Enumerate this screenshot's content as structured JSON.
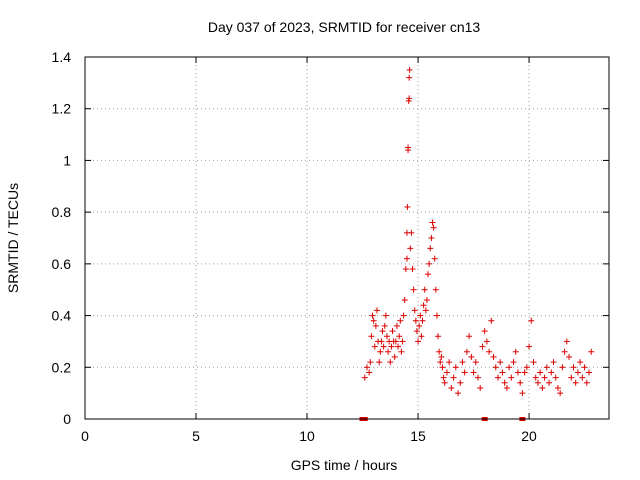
{
  "chart_data": {
    "type": "scatter",
    "title": "Day 037 of 2023, SRMTID for receiver cn13",
    "xlabel": "GPS time / hours",
    "ylabel": "SRMTID / TECUs",
    "xlim": [
      0,
      23.6
    ],
    "ylim": [
      0,
      1.4
    ],
    "xticks": [
      0,
      5,
      10,
      15,
      20
    ],
    "xtick_labels": [
      "0",
      "5",
      "10",
      "15",
      "20"
    ],
    "yticks": [
      0,
      0.2,
      0.4,
      0.6,
      0.8,
      1.0,
      1.2,
      1.4
    ],
    "ytick_labels": [
      "0",
      "0.2",
      "0.4",
      "0.6",
      "0.8",
      "1",
      "1.2",
      "1.4"
    ],
    "grid": true,
    "marker": "+",
    "color": "#dd0000",
    "series": [
      {
        "name": "SRMTID",
        "x": [
          12.6,
          12.7,
          12.8,
          12.85,
          12.9,
          12.95,
          13.0,
          13.05,
          13.1,
          13.15,
          13.2,
          13.25,
          13.3,
          13.35,
          13.4,
          13.45,
          13.5,
          13.55,
          13.6,
          13.65,
          13.7,
          13.75,
          13.8,
          13.85,
          13.9,
          13.95,
          14.0,
          14.05,
          14.1,
          14.15,
          14.2,
          14.25,
          14.3,
          14.35,
          14.4,
          14.45,
          14.5,
          14.5,
          14.52,
          14.55,
          14.55,
          14.58,
          14.6,
          14.6,
          14.62,
          14.65,
          14.7,
          14.75,
          14.8,
          14.85,
          14.9,
          14.95,
          15.0,
          15.05,
          15.1,
          15.15,
          15.2,
          15.25,
          15.3,
          15.35,
          15.4,
          15.45,
          15.5,
          15.55,
          15.6,
          15.65,
          15.7,
          15.75,
          15.8,
          15.85,
          15.9,
          15.95,
          16.0,
          16.05,
          16.1,
          16.15,
          16.2,
          16.3,
          16.4,
          16.5,
          16.6,
          16.7,
          16.8,
          16.9,
          17.0,
          17.1,
          17.2,
          17.3,
          17.4,
          17.5,
          17.6,
          17.7,
          17.8,
          17.9,
          18.0,
          18.1,
          18.2,
          18.3,
          18.4,
          18.5,
          18.6,
          18.7,
          18.8,
          18.9,
          19.0,
          19.1,
          19.2,
          19.3,
          19.4,
          19.5,
          19.6,
          19.7,
          19.8,
          19.9,
          20.0,
          20.1,
          20.2,
          20.3,
          20.4,
          20.5,
          20.6,
          20.7,
          20.8,
          20.9,
          21.0,
          21.1,
          21.2,
          21.3,
          21.4,
          21.5,
          21.6,
          21.7,
          21.8,
          21.9,
          22.0,
          22.1,
          22.2,
          22.3,
          22.4,
          22.5,
          22.6,
          22.7,
          22.8
        ],
        "y": [
          0.16,
          0.2,
          0.18,
          0.22,
          0.32,
          0.4,
          0.38,
          0.28,
          0.36,
          0.42,
          0.3,
          0.22,
          0.26,
          0.3,
          0.34,
          0.28,
          0.36,
          0.4,
          0.32,
          0.26,
          0.3,
          0.22,
          0.28,
          0.34,
          0.3,
          0.24,
          0.3,
          0.36,
          0.28,
          0.32,
          0.38,
          0.26,
          0.3,
          0.4,
          0.46,
          0.58,
          0.62,
          0.72,
          0.82,
          1.04,
          1.05,
          1.23,
          1.24,
          1.32,
          1.35,
          0.66,
          0.72,
          0.58,
          0.5,
          0.42,
          0.38,
          0.34,
          0.3,
          0.36,
          0.4,
          0.32,
          0.38,
          0.44,
          0.5,
          0.42,
          0.46,
          0.56,
          0.6,
          0.66,
          0.7,
          0.76,
          0.74,
          0.62,
          0.5,
          0.4,
          0.32,
          0.26,
          0.22,
          0.24,
          0.2,
          0.16,
          0.14,
          0.18,
          0.22,
          0.12,
          0.16,
          0.2,
          0.1,
          0.14,
          0.22,
          0.18,
          0.26,
          0.32,
          0.24,
          0.18,
          0.22,
          0.16,
          0.12,
          0.28,
          0.34,
          0.3,
          0.26,
          0.38,
          0.24,
          0.2,
          0.16,
          0.22,
          0.18,
          0.14,
          0.12,
          0.2,
          0.16,
          0.22,
          0.26,
          0.18,
          0.14,
          0.1,
          0.18,
          0.2,
          0.28,
          0.38,
          0.22,
          0.16,
          0.14,
          0.18,
          0.12,
          0.16,
          0.2,
          0.14,
          0.18,
          0.22,
          0.16,
          0.12,
          0.1,
          0.2,
          0.26,
          0.3,
          0.24,
          0.16,
          0.2,
          0.14,
          0.18,
          0.22,
          0.16,
          0.2,
          0.14,
          0.18,
          0.26
        ]
      }
    ],
    "gap_markers_x": [
      12.5,
      12.6,
      18.0,
      19.7
    ]
  }
}
